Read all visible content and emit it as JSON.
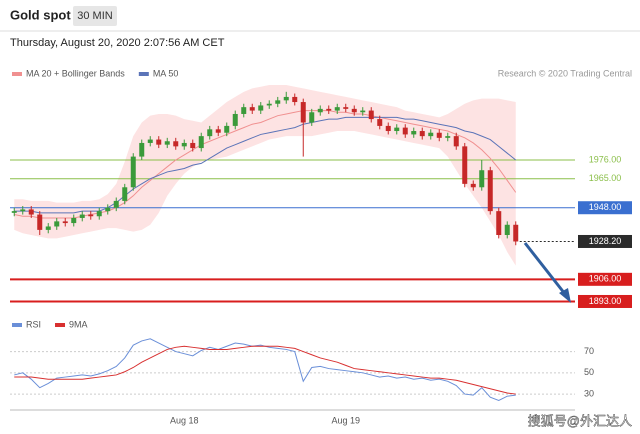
{
  "title": "Gold spot",
  "interval": "30 MIN",
  "subtitle": "Thursday, August 20, 2020 2:07:56 AM CET",
  "source": "Research © 2020 Trading Central",
  "watermark": "搜狐号@外汇达人",
  "chart_data": [
    {
      "type": "candlestick",
      "up_color": "#3a9a3a",
      "down_color": "#c62828",
      "ylim": [
        1888,
        2020
      ],
      "open": [
        1945,
        1946,
        1947,
        1944,
        1935,
        1937,
        1940,
        1939,
        1942,
        1944,
        1943,
        1946,
        1948,
        1952,
        1960,
        1978,
        1986,
        1988,
        1985,
        1987,
        1984,
        1986,
        1983,
        1990,
        1994,
        1992,
        1996,
        2003,
        2007,
        2005,
        2008,
        2009,
        2011,
        2013,
        2010,
        1998,
        2004,
        2006,
        2005,
        2007,
        2006,
        2004,
        2005,
        2000,
        1996,
        1993,
        1995,
        1991,
        1993,
        1990,
        1992,
        1989,
        1990,
        1984,
        1962,
        1960,
        1970,
        1946,
        1932,
        1938
      ],
      "high": [
        1948,
        1949,
        1949,
        1946,
        1939,
        1942,
        1942,
        1944,
        1946,
        1946,
        1948,
        1950,
        1954,
        1962,
        1980,
        1988,
        1990,
        1990,
        1989,
        1989,
        1988,
        1988,
        1992,
        1996,
        1996,
        1998,
        2005,
        2009,
        2009,
        2010,
        2011,
        2013,
        2016,
        2015,
        2012,
        2006,
        2008,
        2008,
        2009,
        2009,
        2008,
        2007,
        2007,
        2002,
        1998,
        1997,
        1997,
        1995,
        1995,
        1994,
        1994,
        1992,
        1992,
        1986,
        1964,
        1976,
        1972,
        1948,
        1940,
        1940
      ],
      "low": [
        1943,
        1944,
        1942,
        1932,
        1933,
        1935,
        1937,
        1937,
        1940,
        1941,
        1941,
        1944,
        1946,
        1950,
        1958,
        1976,
        1984,
        1983,
        1983,
        1982,
        1982,
        1981,
        1981,
        1988,
        1990,
        1990,
        1994,
        2001,
        2003,
        2003,
        2006,
        2007,
        2009,
        2008,
        1978,
        1996,
        2002,
        2003,
        2003,
        2004,
        2002,
        2002,
        1998,
        1994,
        1991,
        1991,
        1989,
        1989,
        1988,
        1988,
        1987,
        1987,
        1982,
        1960,
        1958,
        1958,
        1944,
        1930,
        1930,
        1926
      ],
      "close": [
        1946,
        1947,
        1944,
        1935,
        1937,
        1940,
        1939,
        1942,
        1944,
        1943,
        1946,
        1948,
        1952,
        1960,
        1978,
        1986,
        1988,
        1985,
        1987,
        1984,
        1986,
        1983,
        1990,
        1994,
        1992,
        1996,
        2003,
        2007,
        2005,
        2008,
        2009,
        2011,
        2013,
        2010,
        1998,
        2004,
        2006,
        2005,
        2007,
        2006,
        2004,
        2005,
        2000,
        1996,
        1993,
        1995,
        1991,
        1993,
        1990,
        1992,
        1989,
        1990,
        1984,
        1962,
        1960,
        1970,
        1946,
        1932,
        1938,
        1928.2
      ],
      "series": [
        {
          "name": "MA 20 + Bollinger Bands",
          "color": "#f09090",
          "band_color": "#fde3e3",
          "values": [
            1944,
            1943,
            1943,
            1942,
            1942,
            1942,
            1942,
            1942,
            1943,
            1944,
            1945,
            1946,
            1948,
            1951,
            1955,
            1960,
            1964,
            1968,
            1972,
            1976,
            1979,
            1982,
            1985,
            1987,
            1989,
            1991,
            1993,
            1995,
            1997,
            1998,
            2000,
            2002,
            2003,
            2004,
            2005,
            2005,
            2005,
            2005,
            2004,
            2004,
            2003,
            2003,
            2002,
            2001,
            2000,
            1999,
            1998,
            1997,
            1996,
            1995,
            1994,
            1993,
            1991,
            1989,
            1986,
            1982,
            1977,
            1971,
            1964,
            1957
          ],
          "upper": [
            1953,
            1953,
            1952,
            1952,
            1952,
            1951,
            1951,
            1951,
            1952,
            1952,
            1953,
            1956,
            1962,
            1975,
            1990,
            1998,
            2002,
            2003,
            2003,
            2002,
            2000,
            1999,
            1998,
            2002,
            2006,
            2010,
            2013,
            2016,
            2018,
            2019,
            2020,
            2020,
            2020,
            2019,
            2018,
            2017,
            2016,
            2015,
            2014,
            2013,
            2012,
            2011,
            2010,
            2009,
            2008,
            2007,
            2005,
            2004,
            2003,
            2002,
            2001,
            2003,
            2006,
            2009,
            2011,
            2012,
            2012,
            2012,
            2011,
            2010
          ],
          "lower": [
            1935,
            1933,
            1932,
            1931,
            1930,
            1930,
            1931,
            1932,
            1933,
            1934,
            1935,
            1936,
            1936,
            1935,
            1934,
            1935,
            1938,
            1945,
            1955,
            1962,
            1968,
            1972,
            1975,
            1976,
            1977,
            1978,
            1980,
            1982,
            1984,
            1986,
            1988,
            1989,
            1990,
            1990,
            1990,
            1990,
            1991,
            1992,
            1993,
            1993,
            1993,
            1992,
            1991,
            1990,
            1989,
            1988,
            1987,
            1986,
            1985,
            1984,
            1983,
            1978,
            1970,
            1962,
            1955,
            1948,
            1940,
            1932,
            1922,
            1914
          ]
        },
        {
          "name": "MA 50",
          "color": "#5b74b8",
          "values": [
            1946,
            1946,
            1946,
            1945,
            1945,
            1945,
            1945,
            1945,
            1946,
            1946,
            1946,
            1948,
            1951,
            1955,
            1959,
            1962,
            1965,
            1967,
            1969,
            1970,
            1971,
            1973,
            1974,
            1977,
            1980,
            1983,
            1985,
            1987,
            1989,
            1991,
            1992,
            1993,
            1994,
            1995,
            1997,
            1998,
            1999,
            2000,
            2000,
            2001,
            2001,
            2001,
            2001,
            2001,
            2001,
            2001,
            2000,
            2000,
            1999,
            1998,
            1997,
            1996,
            1995,
            1993,
            1992,
            1990,
            1988,
            1984,
            1980,
            1976
          ]
        }
      ],
      "levels": [
        {
          "value": 1976,
          "label": "1976.00",
          "color": "#8bbf4a",
          "boxed": false,
          "style": "solid",
          "width": 1
        },
        {
          "value": 1965,
          "label": "1965.00",
          "color": "#8bbf4a",
          "boxed": false,
          "style": "solid",
          "width": 1
        },
        {
          "value": 1948,
          "label": "1948.00",
          "color": "#3a6fd0",
          "boxed": true,
          "style": "solid",
          "width": 1
        },
        {
          "value": 1928.2,
          "label": "1928.20",
          "color": "#2b2b2b",
          "boxed": true,
          "style": "dotted",
          "width": 1
        },
        {
          "value": 1906,
          "label": "1906.00",
          "color": "#d81e1e",
          "boxed": true,
          "style": "solid",
          "width": 2
        },
        {
          "value": 1893,
          "label": "1893.00",
          "color": "#d81e1e",
          "boxed": true,
          "style": "solid",
          "width": 2
        }
      ]
    },
    {
      "type": "line",
      "ylim": [
        15,
        95
      ],
      "yticks": [
        70,
        50,
        30
      ],
      "grid": true,
      "categories": [
        null,
        null,
        null,
        null,
        null,
        null,
        null,
        null,
        null,
        null,
        null,
        null,
        null,
        null,
        null,
        null,
        null,
        null,
        null,
        null,
        "Aug 18",
        null,
        null,
        null,
        null,
        null,
        null,
        null,
        null,
        null,
        null,
        null,
        null,
        null,
        null,
        null,
        null,
        null,
        null,
        "Aug 19",
        null,
        null,
        null,
        null,
        null,
        null,
        null,
        null,
        null,
        null,
        null,
        null,
        null,
        null,
        null,
        null,
        null,
        null,
        null,
        null
      ],
      "series": [
        {
          "name": "RSI",
          "color": "#6a8fd8",
          "values": [
            48,
            50,
            44,
            36,
            40,
            45,
            46,
            47,
            48,
            47,
            49,
            52,
            56,
            64,
            76,
            80,
            82,
            78,
            74,
            70,
            68,
            66,
            71,
            74,
            72,
            75,
            78,
            77,
            75,
            76,
            74,
            73,
            72,
            70,
            42,
            55,
            56,
            54,
            53,
            52,
            51,
            50,
            48,
            46,
            47,
            45,
            46,
            44,
            45,
            43,
            44,
            42,
            38,
            30,
            29,
            36,
            27,
            24,
            28,
            29
          ]
        },
        {
          "name": "9MA",
          "color": "#d83030",
          "values": [
            46,
            46,
            46,
            45,
            44,
            44,
            44,
            44,
            44,
            45,
            46,
            47,
            48,
            51,
            55,
            60,
            64,
            68,
            72,
            74,
            75,
            74,
            73,
            72,
            72,
            72,
            73,
            74,
            75,
            75,
            75,
            75,
            74,
            73,
            70,
            67,
            64,
            62,
            60,
            57,
            54,
            53,
            52,
            51,
            50,
            49,
            48,
            47,
            46,
            45,
            45,
            44,
            43,
            41,
            39,
            37,
            35,
            33,
            31,
            30
          ]
        }
      ]
    }
  ]
}
